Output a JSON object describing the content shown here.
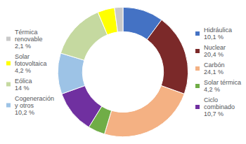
{
  "chart_data": {
    "type": "pie",
    "categories": [
      "Hidráulica\n10,1 %",
      "Nuclear\n20,4 %",
      "Carbón\n24,1 %",
      "Solar térmica\n4,2 %",
      "Ciclo\ncombinado\n10,7 %",
      "Cogeneración\ny otros\n10,2 %",
      "Eólica\n14 %",
      "Solar\nfotovoltaica\n4,2 %",
      "Térmica\nrenovable\n2,1 %"
    ],
    "values": [
      10.1,
      20.4,
      24.1,
      4.2,
      10.7,
      10.2,
      14.0,
      4.2,
      2.1
    ],
    "colors": [
      "#4472C4",
      "#7B2929",
      "#F4B183",
      "#70AD47",
      "#7030A0",
      "#9DC3E6",
      "#C5D9A0",
      "#FFFF00",
      "#C9C9C9"
    ],
    "legend": "sides"
  }
}
